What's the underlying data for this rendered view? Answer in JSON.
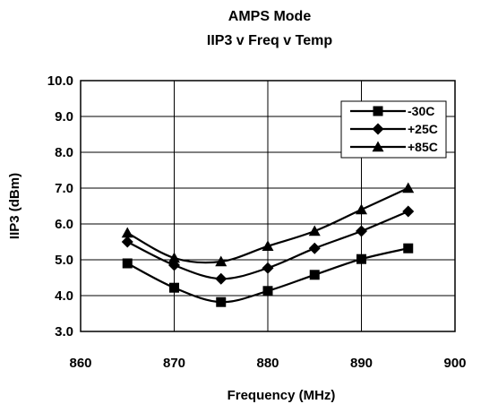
{
  "chart_data": {
    "type": "line",
    "title": "AMPS Mode",
    "subtitle": "IIP3 v Freq v Temp",
    "xlabel": "Frequency (MHz)",
    "ylabel": "IIP3 (dBm)",
    "xlim": [
      860,
      900
    ],
    "ylim": [
      3.0,
      10.0
    ],
    "x_ticks": [
      "860",
      "870",
      "880",
      "890",
      "900"
    ],
    "y_ticks": [
      "3.0",
      "4.0",
      "5.0",
      "6.0",
      "7.0",
      "8.0",
      "9.0",
      "10.0"
    ],
    "x_tick_values": [
      860,
      870,
      880,
      890,
      900
    ],
    "y_tick_values": [
      3,
      4,
      5,
      6,
      7,
      8,
      9,
      10
    ],
    "grid": true,
    "legend_position": "top-right",
    "x": [
      865,
      870,
      875,
      880,
      885,
      890,
      895
    ],
    "series": [
      {
        "name": "-30C",
        "marker": "square",
        "values": [
          4.9,
          4.22,
          3.82,
          4.13,
          4.58,
          5.02,
          5.32
        ]
      },
      {
        "name": "+25C",
        "marker": "diamond",
        "values": [
          5.5,
          4.85,
          4.47,
          4.77,
          5.32,
          5.8,
          6.35
        ]
      },
      {
        "name": "+85C",
        "marker": "triangle",
        "values": [
          5.75,
          5.05,
          4.95,
          5.38,
          5.8,
          6.4,
          7.0
        ]
      }
    ],
    "color": "#000000"
  }
}
